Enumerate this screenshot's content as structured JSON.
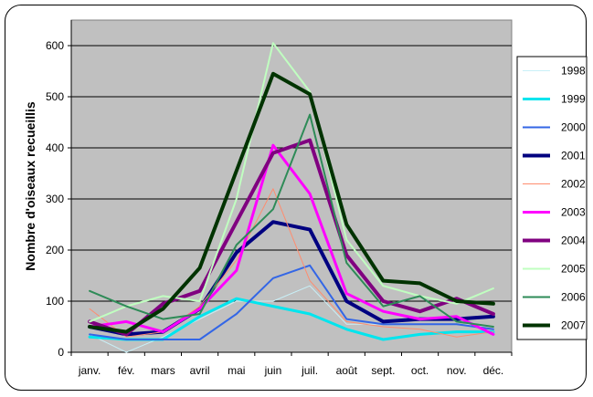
{
  "chart_data": {
    "type": "line",
    "ylabel": "Nombre d'oiseaux recueillis",
    "xlabel": "",
    "ylim": [
      0,
      650
    ],
    "yticks": [
      0,
      100,
      200,
      300,
      400,
      500,
      600
    ],
    "grid": "horizontal",
    "legend_position": "right",
    "plot_background": "#c0c0c0",
    "categories": [
      "janv.",
      "fév.",
      "mars",
      "avril",
      "mai",
      "juin",
      "juil.",
      "août",
      "sept.",
      "oct.",
      "nov.",
      "déc."
    ],
    "series": [
      {
        "name": "1998",
        "color": "#c8f0f8",
        "width": 1,
        "values": [
          35,
          0,
          30,
          65,
          100,
          100,
          130,
          55,
          55,
          55,
          55,
          50
        ]
      },
      {
        "name": "1999",
        "color": "#00e5ee",
        "width": 3,
        "values": [
          30,
          25,
          25,
          70,
          105,
          90,
          75,
          45,
          25,
          35,
          40,
          40
        ]
      },
      {
        "name": "2000",
        "color": "#3366e6",
        "width": 2,
        "values": [
          35,
          25,
          25,
          25,
          75,
          145,
          170,
          65,
          55,
          55,
          55,
          45
        ]
      },
      {
        "name": "2001",
        "color": "#000080",
        "width": 4,
        "values": [
          50,
          35,
          40,
          85,
          195,
          255,
          240,
          100,
          60,
          65,
          65,
          70
        ]
      },
      {
        "name": "2002",
        "color": "#ff8c6e",
        "width": 1,
        "values": [
          85,
          30,
          40,
          90,
          180,
          320,
          140,
          60,
          50,
          45,
          30,
          40
        ]
      },
      {
        "name": "2003",
        "color": "#ff00ff",
        "width": 3,
        "values": [
          50,
          60,
          40,
          85,
          160,
          405,
          310,
          115,
          80,
          65,
          70,
          35
        ]
      },
      {
        "name": "2004",
        "color": "#800080",
        "width": 4,
        "values": [
          60,
          35,
          95,
          120,
          255,
          390,
          415,
          190,
          100,
          80,
          105,
          75
        ]
      },
      {
        "name": "2005",
        "color": "#c0ffc0",
        "width": 2,
        "values": [
          60,
          90,
          110,
          100,
          300,
          605,
          510,
          220,
          130,
          110,
          95,
          125
        ]
      },
      {
        "name": "2006",
        "color": "#2e8b57",
        "width": 2,
        "values": [
          120,
          90,
          65,
          75,
          210,
          280,
          465,
          175,
          90,
          110,
          60,
          50
        ]
      },
      {
        "name": "2007",
        "color": "#003300",
        "width": 4,
        "values": [
          50,
          40,
          85,
          165,
          355,
          545,
          505,
          250,
          140,
          135,
          100,
          95
        ]
      }
    ]
  }
}
